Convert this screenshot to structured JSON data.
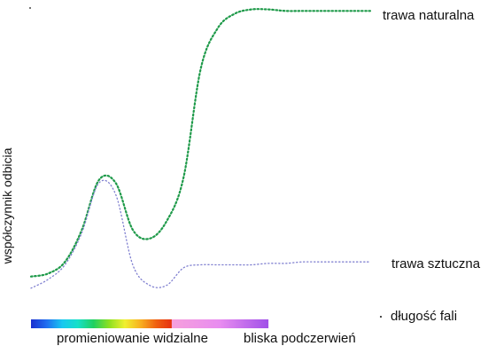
{
  "chart_data": {
    "type": "line",
    "title": "",
    "ylabel": "współczynnik odbicia",
    "xlabel": "długość fali",
    "x": [
      0,
      5,
      10,
      15,
      20,
      25,
      30,
      35,
      40,
      45,
      50,
      55,
      60,
      65,
      70,
      75,
      80,
      85,
      90,
      95,
      100
    ],
    "series": [
      {
        "name": "trawa naturalna",
        "color": "#1f9a4a",
        "values": [
          0.08,
          0.09,
          0.13,
          0.24,
          0.41,
          0.4,
          0.24,
          0.21,
          0.27,
          0.42,
          0.79,
          0.93,
          0.98,
          0.995,
          0.995,
          0.99,
          0.99,
          0.99,
          0.99,
          0.99,
          0.99
        ]
      },
      {
        "name": "trawa sztuczna",
        "color": "#8080d0",
        "values": [
          0.04,
          0.07,
          0.12,
          0.23,
          0.4,
          0.36,
          0.12,
          0.05,
          0.05,
          0.11,
          0.12,
          0.12,
          0.12,
          0.12,
          0.125,
          0.125,
          0.13,
          0.13,
          0.13,
          0.13,
          0.13
        ]
      }
    ],
    "spectrum_bands": [
      {
        "label": "promieniowanie widzialne",
        "x_start": 0,
        "x_end": 41.5
      },
      {
        "label": "bliska podczerwień",
        "x_start": 41.5,
        "x_end": 70
      }
    ],
    "axes_visible": false,
    "grid": false,
    "legend": "line-end labels",
    "colors": {
      "visible_gradient": [
        "#1a2fd0",
        "#1f6ef0",
        "#18c8f0",
        "#16e0c8",
        "#20d060",
        "#8ee020",
        "#f0f030",
        "#f8b020",
        "#f06010",
        "#e63010"
      ],
      "nir_gradient": [
        "#f6a0dc",
        "#e88cf0",
        "#a050e8"
      ]
    }
  }
}
